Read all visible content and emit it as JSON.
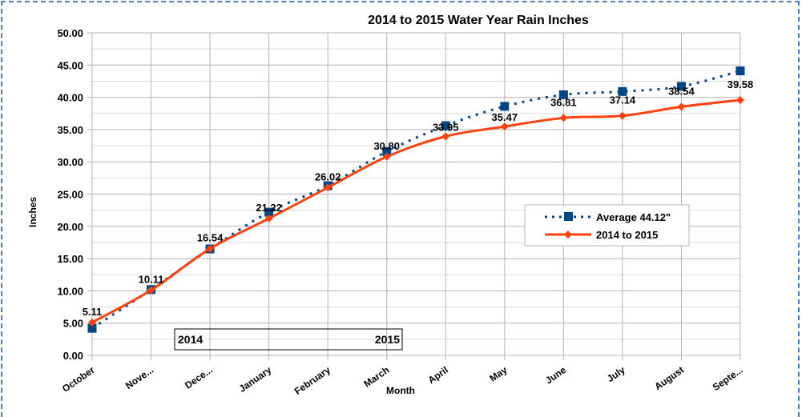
{
  "chart_data": {
    "type": "line",
    "title": "2014 to 2015 Water Year Rain Inches",
    "xlabel": "Month",
    "ylabel": "Inches",
    "categories": [
      "October",
      "Nove...",
      "Dece...",
      "January",
      "February",
      "March",
      "April",
      "May",
      "June",
      "July",
      "August",
      "Septe..."
    ],
    "ylim": [
      0,
      50
    ],
    "yticks": [
      "0.00",
      "5.00",
      "10.00",
      "15.00",
      "20.00",
      "25.00",
      "30.00",
      "35.00",
      "40.00",
      "45.00",
      "50.00"
    ],
    "grid": true,
    "legend_placement": "right",
    "series": [
      {
        "name": "Average 44.12\"",
        "color": "#004586",
        "style": "dotted",
        "marker": "square",
        "values": [
          4.2,
          10.2,
          16.5,
          22.2,
          26.3,
          31.6,
          35.6,
          38.6,
          40.4,
          40.9,
          41.7,
          44.1
        ]
      },
      {
        "name": "2014 to 2015",
        "color": "#ff420e",
        "style": "solid",
        "marker": "diamond",
        "values": [
          5.11,
          10.11,
          16.54,
          21.22,
          26.02,
          30.8,
          33.95,
          35.47,
          36.81,
          37.14,
          38.54,
          39.58
        ],
        "labels": [
          "5.11",
          "10.11",
          "16.54",
          "21.22",
          "26.02",
          "30.80",
          "33.95",
          "35.47",
          "36.81",
          "37.14",
          "38.54",
          "39.58"
        ]
      }
    ],
    "annotation": {
      "left": "2014",
      "right": "2015"
    }
  }
}
